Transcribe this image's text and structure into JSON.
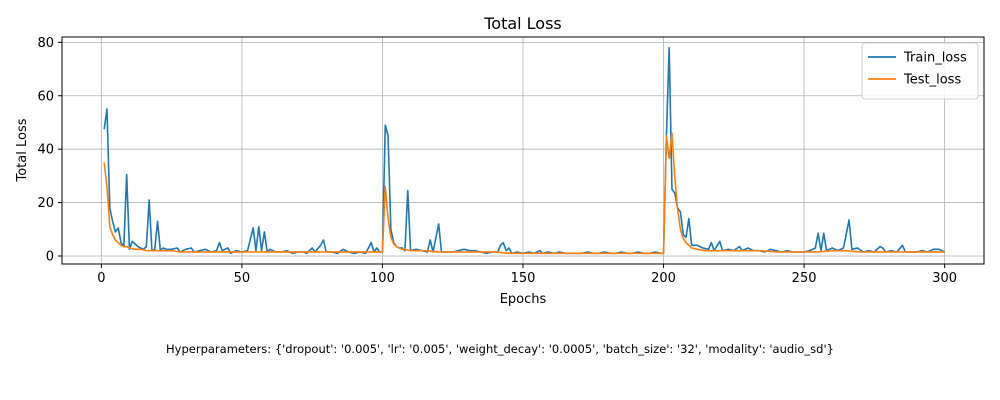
{
  "chart_data": {
    "type": "line",
    "title": "Total Loss",
    "xlabel": "Epochs",
    "ylabel": "Total Loss",
    "xlim": [
      -14,
      314
    ],
    "ylim": [
      -3,
      82
    ],
    "xticks": [
      0,
      50,
      100,
      150,
      200,
      250,
      300
    ],
    "yticks": [
      0,
      20,
      40,
      60,
      80
    ],
    "grid": true,
    "legend_position": "top-right",
    "series": [
      {
        "name": "Train_loss",
        "color": "#1f77b4",
        "points": [
          [
            1,
            47.5
          ],
          [
            2,
            55
          ],
          [
            3,
            18
          ],
          [
            4,
            13
          ],
          [
            5,
            9
          ],
          [
            6,
            10.5
          ],
          [
            7,
            5
          ],
          [
            8,
            3.5
          ],
          [
            9,
            30.5
          ],
          [
            10,
            2.5
          ],
          [
            11,
            5.5
          ],
          [
            12,
            4.5
          ],
          [
            13,
            3.5
          ],
          [
            14,
            3
          ],
          [
            15,
            2.5
          ],
          [
            16,
            3.5
          ],
          [
            17,
            21
          ],
          [
            18,
            2
          ],
          [
            19,
            2.5
          ],
          [
            20,
            13
          ],
          [
            21,
            2
          ],
          [
            22,
            3
          ],
          [
            23,
            2.5
          ],
          [
            25,
            2.5
          ],
          [
            27,
            3
          ],
          [
            28,
            1.5
          ],
          [
            30,
            2.5
          ],
          [
            32,
            3
          ],
          [
            33,
            1.5
          ],
          [
            35,
            2
          ],
          [
            37,
            2.5
          ],
          [
            39,
            1.5
          ],
          [
            41,
            2
          ],
          [
            42,
            5
          ],
          [
            43,
            2
          ],
          [
            45,
            3
          ],
          [
            46,
            1
          ],
          [
            48,
            2
          ],
          [
            50,
            1.5
          ],
          [
            52,
            2
          ],
          [
            54,
            10.5
          ],
          [
            55,
            2
          ],
          [
            56,
            11
          ],
          [
            57,
            2
          ],
          [
            58,
            9
          ],
          [
            59,
            1.5
          ],
          [
            60,
            2.5
          ],
          [
            62,
            1.5
          ],
          [
            64,
            1.5
          ],
          [
            66,
            2
          ],
          [
            68,
            1
          ],
          [
            70,
            1.5
          ],
          [
            72,
            1.5
          ],
          [
            73,
            1
          ],
          [
            75,
            3
          ],
          [
            76,
            1.5
          ],
          [
            78,
            4
          ],
          [
            79,
            6
          ],
          [
            80,
            1.5
          ],
          [
            82,
            1.5
          ],
          [
            84,
            1
          ],
          [
            86,
            2.5
          ],
          [
            88,
            1.5
          ],
          [
            90,
            1
          ],
          [
            92,
            1.5
          ],
          [
            94,
            1
          ],
          [
            96,
            5
          ],
          [
            97,
            1.5
          ],
          [
            98,
            3
          ],
          [
            99,
            1.5
          ],
          [
            100,
            1.5
          ],
          [
            101,
            49
          ],
          [
            102,
            45
          ],
          [
            103,
            10
          ],
          [
            104,
            5
          ],
          [
            105,
            3.5
          ],
          [
            106,
            3
          ],
          [
            107,
            3
          ],
          [
            108,
            2
          ],
          [
            109,
            24.5
          ],
          [
            110,
            2
          ],
          [
            112,
            2.5
          ],
          [
            114,
            2
          ],
          [
            116,
            1.5
          ],
          [
            117,
            6
          ],
          [
            118,
            1.5
          ],
          [
            120,
            12
          ],
          [
            121,
            1.5
          ],
          [
            123,
            1.5
          ],
          [
            125,
            1.5
          ],
          [
            127,
            2
          ],
          [
            129,
            2.5
          ],
          [
            131,
            2
          ],
          [
            133,
            2
          ],
          [
            135,
            1.5
          ],
          [
            137,
            1
          ],
          [
            139,
            1.5
          ],
          [
            141,
            1.5
          ],
          [
            142,
            4
          ],
          [
            143,
            5
          ],
          [
            144,
            2
          ],
          [
            145,
            3
          ],
          [
            146,
            1
          ],
          [
            148,
            1.5
          ],
          [
            150,
            1
          ],
          [
            152,
            1.5
          ],
          [
            154,
            1
          ],
          [
            156,
            2
          ],
          [
            157,
            1
          ],
          [
            159,
            1.5
          ],
          [
            161,
            1
          ],
          [
            163,
            1.5
          ],
          [
            165,
            1
          ],
          [
            167,
            1
          ],
          [
            169,
            1
          ],
          [
            171,
            1
          ],
          [
            173,
            1.5
          ],
          [
            175,
            1
          ],
          [
            177,
            1
          ],
          [
            179,
            1.5
          ],
          [
            181,
            1
          ],
          [
            183,
            1
          ],
          [
            185,
            1.5
          ],
          [
            187,
            1
          ],
          [
            189,
            1
          ],
          [
            191,
            1.5
          ],
          [
            193,
            1
          ],
          [
            195,
            1
          ],
          [
            197,
            1.5
          ],
          [
            199,
            1
          ],
          [
            200,
            1
          ],
          [
            201,
            44
          ],
          [
            202,
            78
          ],
          [
            203,
            25
          ],
          [
            204,
            23.5
          ],
          [
            205,
            18
          ],
          [
            206,
            16.5
          ],
          [
            207,
            8
          ],
          [
            208,
            7
          ],
          [
            209,
            14
          ],
          [
            210,
            4
          ],
          [
            212,
            4
          ],
          [
            214,
            3
          ],
          [
            216,
            2.5
          ],
          [
            217,
            5
          ],
          [
            218,
            2
          ],
          [
            220,
            5.5
          ],
          [
            221,
            2
          ],
          [
            223,
            2.5
          ],
          [
            225,
            2
          ],
          [
            227,
            3.5
          ],
          [
            228,
            2
          ],
          [
            230,
            3
          ],
          [
            232,
            2
          ],
          [
            234,
            2
          ],
          [
            236,
            1.5
          ],
          [
            238,
            2.5
          ],
          [
            240,
            2
          ],
          [
            242,
            1.5
          ],
          [
            244,
            2
          ],
          [
            246,
            1.5
          ],
          [
            248,
            1.5
          ],
          [
            250,
            1.5
          ],
          [
            252,
            2
          ],
          [
            254,
            3
          ],
          [
            255,
            8.5
          ],
          [
            256,
            2
          ],
          [
            257,
            8.5
          ],
          [
            258,
            2
          ],
          [
            260,
            3
          ],
          [
            262,
            2
          ],
          [
            264,
            3
          ],
          [
            266,
            13.5
          ],
          [
            267,
            2.5
          ],
          [
            269,
            3
          ],
          [
            271,
            1.5
          ],
          [
            273,
            2
          ],
          [
            275,
            1.5
          ],
          [
            277,
            3.5
          ],
          [
            278,
            3
          ],
          [
            279,
            1.5
          ],
          [
            281,
            2
          ],
          [
            283,
            1.5
          ],
          [
            285,
            4
          ],
          [
            286,
            1.5
          ],
          [
            288,
            1.5
          ],
          [
            290,
            1.5
          ],
          [
            292,
            2
          ],
          [
            294,
            1.5
          ],
          [
            296,
            2.5
          ],
          [
            298,
            2.5
          ],
          [
            300,
            1.5
          ]
        ]
      },
      {
        "name": "Test_loss",
        "color": "#ff7f0e",
        "points": [
          [
            1,
            35
          ],
          [
            2,
            26
          ],
          [
            3,
            11
          ],
          [
            4,
            8
          ],
          [
            5,
            6
          ],
          [
            6,
            5
          ],
          [
            7,
            4
          ],
          [
            8,
            3.5
          ],
          [
            9,
            3.5
          ],
          [
            10,
            3
          ],
          [
            12,
            2.5
          ],
          [
            14,
            2.5
          ],
          [
            16,
            2
          ],
          [
            18,
            2
          ],
          [
            20,
            2
          ],
          [
            22,
            2
          ],
          [
            25,
            2
          ],
          [
            28,
            1.5
          ],
          [
            30,
            1.5
          ],
          [
            35,
            1.5
          ],
          [
            40,
            1.5
          ],
          [
            45,
            1.5
          ],
          [
            50,
            1.5
          ],
          [
            55,
            1.5
          ],
          [
            60,
            1.5
          ],
          [
            65,
            1.5
          ],
          [
            70,
            1.5
          ],
          [
            75,
            1.5
          ],
          [
            80,
            1.5
          ],
          [
            85,
            1.5
          ],
          [
            90,
            1.5
          ],
          [
            95,
            1.5
          ],
          [
            100,
            1.5
          ],
          [
            101,
            26
          ],
          [
            102,
            14
          ],
          [
            103,
            7
          ],
          [
            104,
            4.5
          ],
          [
            105,
            3.5
          ],
          [
            106,
            3
          ],
          [
            107,
            2.5
          ],
          [
            108,
            2.5
          ],
          [
            110,
            2
          ],
          [
            115,
            2
          ],
          [
            120,
            1.5
          ],
          [
            125,
            1.5
          ],
          [
            130,
            1.5
          ],
          [
            135,
            1.5
          ],
          [
            140,
            1.5
          ],
          [
            145,
            1
          ],
          [
            150,
            1
          ],
          [
            160,
            1
          ],
          [
            170,
            1
          ],
          [
            180,
            1
          ],
          [
            190,
            1
          ],
          [
            200,
            1
          ],
          [
            201,
            45
          ],
          [
            202,
            36.5
          ],
          [
            203,
            46
          ],
          [
            204,
            29.5
          ],
          [
            205,
            17.5
          ],
          [
            206,
            10
          ],
          [
            207,
            6.5
          ],
          [
            208,
            5
          ],
          [
            209,
            4
          ],
          [
            210,
            3
          ],
          [
            212,
            2.5
          ],
          [
            215,
            2
          ],
          [
            220,
            2
          ],
          [
            225,
            2
          ],
          [
            230,
            2
          ],
          [
            235,
            2
          ],
          [
            240,
            1.5
          ],
          [
            245,
            1.5
          ],
          [
            250,
            1.5
          ],
          [
            255,
            1.5
          ],
          [
            260,
            2
          ],
          [
            265,
            2
          ],
          [
            270,
            1.5
          ],
          [
            275,
            1.5
          ],
          [
            280,
            1.5
          ],
          [
            285,
            1.5
          ],
          [
            290,
            1.5
          ],
          [
            295,
            1.5
          ],
          [
            300,
            1.5
          ]
        ]
      }
    ]
  },
  "caption": "Hyperparameters: {'dropout': '0.005', 'lr': '0.005', 'weight_decay': '0.0005', 'batch_size': '32', 'modality': 'audio_sd'}"
}
